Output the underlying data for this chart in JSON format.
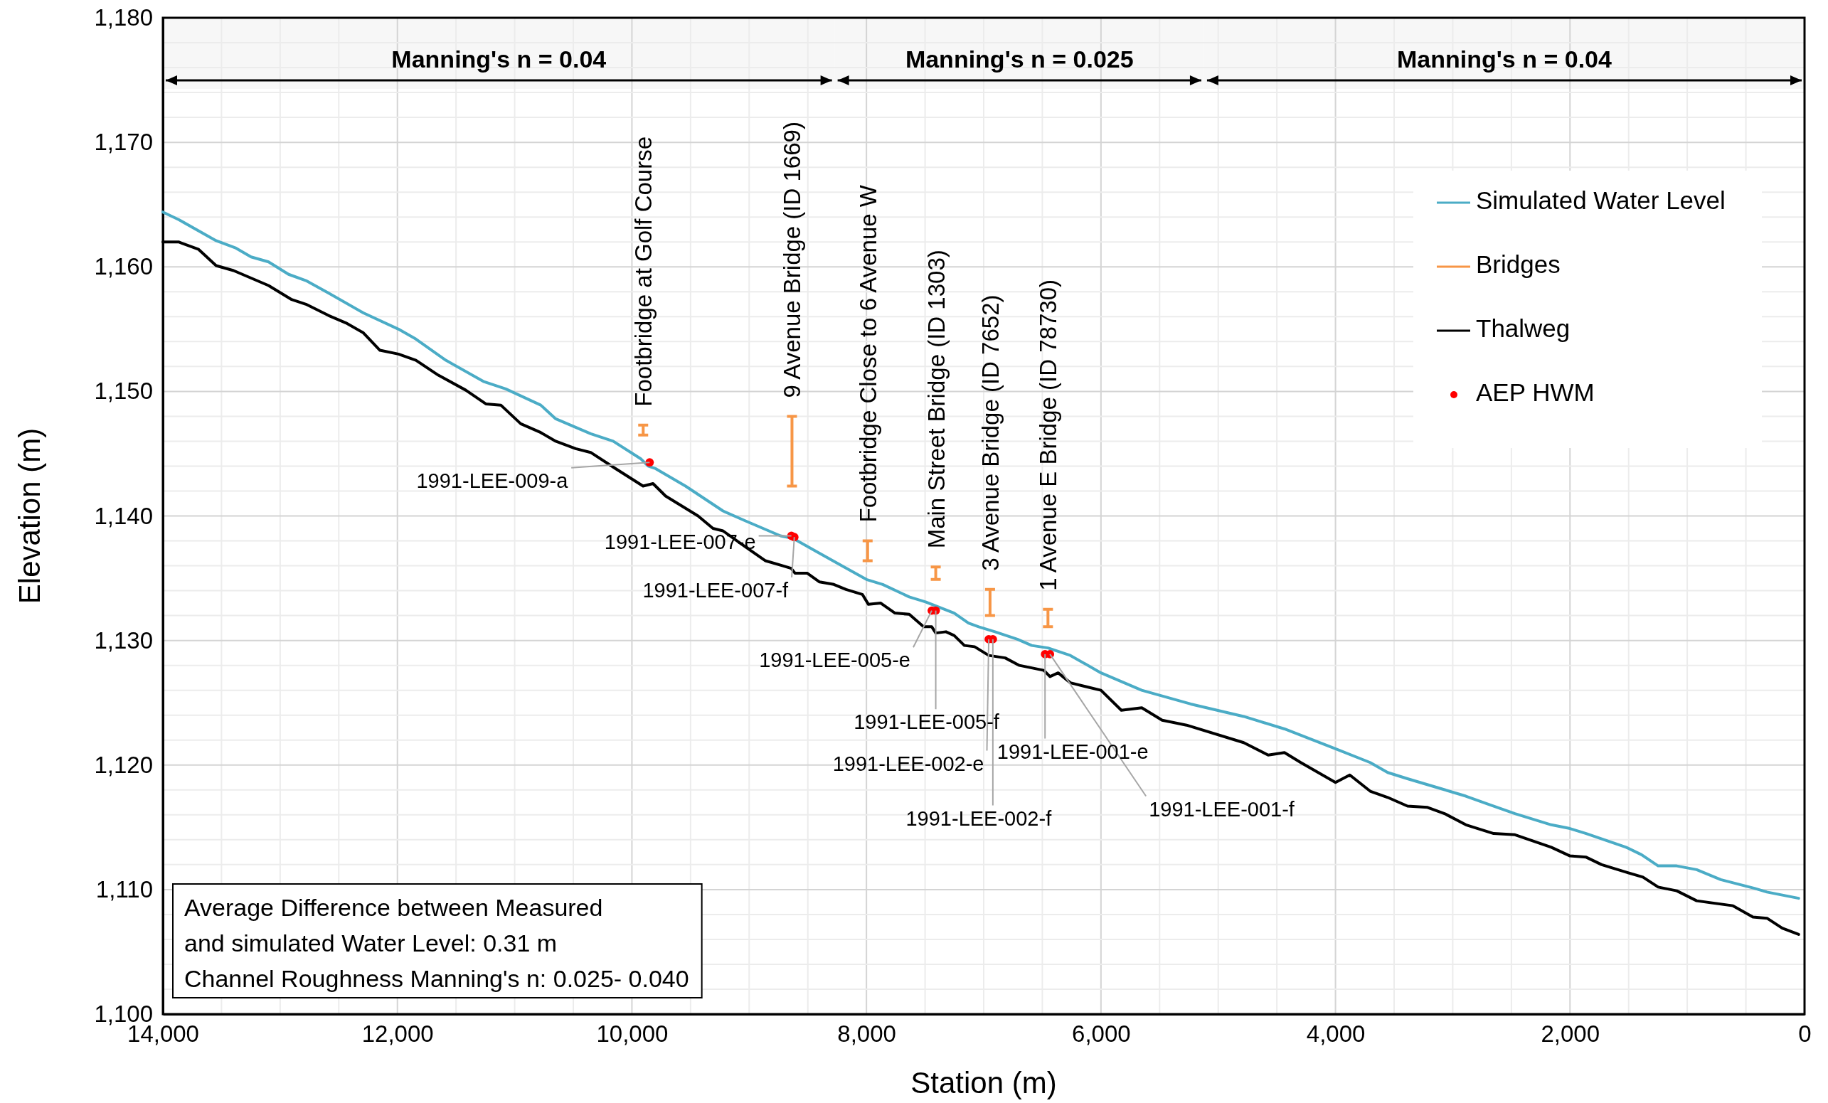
{
  "chart_data": {
    "type": "line",
    "xlabel": "Station (m)",
    "ylabel": "Elevation (m)",
    "xlim": [
      14000,
      0
    ],
    "xticks": [
      {
        "value": 14000,
        "label": "14,000"
      },
      {
        "value": 12000,
        "label": "12,000"
      },
      {
        "value": 10000,
        "label": "10,000"
      },
      {
        "value": 8000,
        "label": "8,000"
      },
      {
        "value": 6000,
        "label": "6,000"
      },
      {
        "value": 4000,
        "label": "4,000"
      },
      {
        "value": 2000,
        "label": "2,000"
      },
      0
    ],
    "ylim": [
      1100,
      1180
    ],
    "yticks": [
      {
        "value": 1100,
        "label": "1,100"
      },
      {
        "value": 1110,
        "label": "1,110"
      },
      {
        "value": 1120,
        "label": "1,120"
      },
      {
        "value": 1130,
        "label": "1,130"
      },
      {
        "value": 1140,
        "label": "1,140"
      },
      {
        "value": 1150,
        "label": "1,150"
      },
      {
        "value": 1160,
        "label": "1,160"
      },
      {
        "value": 1170,
        "label": "1,170"
      },
      {
        "value": 1180,
        "label": "1,180"
      }
    ],
    "grid": true,
    "legend": "top right",
    "series": [
      {
        "name": "Simulated Water Level",
        "color": "#4bacc6",
        "x": [
          14000,
          13866,
          13546,
          13376,
          13248,
          13099,
          12928,
          12780,
          12588,
          12290,
          11991,
          11842,
          11587,
          11267,
          11076,
          10778,
          10650,
          10352,
          10160,
          9926,
          9862,
          9798,
          9543,
          9223,
          9031,
          8733,
          8626,
          8400,
          8191,
          8000,
          7861,
          7635,
          7496,
          7252,
          7130,
          7043,
          6904,
          6713,
          6591,
          6452,
          6261,
          6000,
          5652,
          5235,
          4783,
          4435,
          4000,
          3704,
          3555,
          3386,
          3100,
          2888,
          2680,
          2469,
          2160,
          2000,
          1862,
          1522,
          1390,
          1248,
          1090,
          920,
          715,
          427,
          320,
          50
        ],
        "values": [
          1164.4,
          1163.8,
          1162.1,
          1161.5,
          1160.8,
          1160.4,
          1159.4,
          1158.9,
          1157.9,
          1156.3,
          1155.0,
          1154.2,
          1152.5,
          1150.8,
          1150.2,
          1148.9,
          1147.8,
          1146.6,
          1146.0,
          1144.6,
          1144.0,
          1143.8,
          1142.4,
          1140.4,
          1139.6,
          1138.4,
          1138.2,
          1137.0,
          1135.9,
          1134.9,
          1134.5,
          1133.5,
          1133.1,
          1132.2,
          1131.4,
          1131.1,
          1130.7,
          1130.1,
          1129.6,
          1129.4,
          1128.8,
          1127.4,
          1126.0,
          1124.9,
          1123.9,
          1122.9,
          1121.3,
          1120.2,
          1119.4,
          1118.9,
          1118.1,
          1117.5,
          1116.8,
          1116.1,
          1115.2,
          1114.9,
          1114.5,
          1113.4,
          1112.8,
          1111.9,
          1111.9,
          1111.6,
          1110.8,
          1110.1,
          1109.8,
          1109.3
        ]
      },
      {
        "name": "Bridges",
        "type": "bar",
        "color": "#f79646",
        "x": [
          9904,
          8635,
          7990,
          7409,
          6946,
          6452
        ],
        "base": [
          1146.5,
          1142.4,
          1136.4,
          1134.9,
          1132.0,
          1131.1
        ],
        "values": [
          0.8,
          5.6,
          1.6,
          1.0,
          2.1,
          1.4
        ]
      },
      {
        "name": "Thalweg",
        "color": "#000000",
        "x": [
          14000,
          13866,
          13695,
          13546,
          13397,
          13099,
          12907,
          12780,
          12588,
          12439,
          12290,
          12149,
          11991,
          11842,
          11651,
          11417,
          11246,
          11118,
          10948,
          10778,
          10650,
          10480,
          10352,
          10139,
          9905,
          9820,
          9713,
          9436,
          9309,
          9223,
          9074,
          8861,
          8713,
          8643,
          8609,
          8504,
          8400,
          8278,
          8174,
          8035,
          7983,
          7878,
          7757,
          7635,
          7513,
          7443,
          7409,
          7322,
          7252,
          7165,
          7078,
          6957,
          6817,
          6696,
          6487,
          6435,
          6365,
          6261,
          6000,
          5826,
          5652,
          5478,
          5270,
          4783,
          4574,
          4435,
          4296,
          4000,
          3878,
          3704,
          3555,
          3386,
          3215,
          3070,
          2888,
          2651,
          2469,
          2160,
          2000,
          1862,
          1730,
          1522,
          1378,
          1248,
          1090,
          920,
          610,
          440,
          320,
          190,
          50
        ],
        "values": [
          1162.0,
          1162.0,
          1161.4,
          1160.1,
          1159.7,
          1158.5,
          1157.4,
          1157.0,
          1156.1,
          1155.5,
          1154.7,
          1153.3,
          1153.0,
          1152.5,
          1151.3,
          1150.1,
          1149.0,
          1148.9,
          1147.4,
          1146.7,
          1146.0,
          1145.4,
          1145.1,
          1143.8,
          1142.4,
          1142.6,
          1141.6,
          1140.0,
          1139.0,
          1138.8,
          1137.8,
          1136.4,
          1136.0,
          1135.8,
          1135.4,
          1135.4,
          1134.7,
          1134.5,
          1134.1,
          1133.7,
          1132.9,
          1133.0,
          1132.2,
          1132.1,
          1131.1,
          1131.1,
          1130.6,
          1130.7,
          1130.4,
          1129.6,
          1129.5,
          1128.8,
          1128.6,
          1128.0,
          1127.6,
          1127.1,
          1127.4,
          1126.6,
          1126.0,
          1124.4,
          1124.6,
          1123.6,
          1123.2,
          1121.8,
          1120.8,
          1121.0,
          1120.2,
          1118.6,
          1119.2,
          1117.9,
          1117.4,
          1116.7,
          1116.6,
          1116.1,
          1115.2,
          1114.5,
          1114.4,
          1113.4,
          1112.7,
          1112.6,
          1112.0,
          1111.4,
          1111.0,
          1110.2,
          1109.9,
          1109.1,
          1108.7,
          1107.8,
          1107.7,
          1106.9,
          1106.4
        ]
      },
      {
        "name": "AEP HWM",
        "type": "scatter",
        "marker": "circle",
        "color": "#ff0000",
        "x": [
          9849,
          8640,
          8615,
          7443,
          7409,
          6957,
          6922,
          6477,
          6435
        ],
        "values": [
          1144.3,
          1138.4,
          1138.3,
          1132.4,
          1132.4,
          1130.1,
          1130.1,
          1128.9,
          1128.9
        ]
      }
    ],
    "bands": [
      {
        "axis": "x",
        "from": 14000,
        "to": 8270,
        "label": "Manning's n = 0.04"
      },
      {
        "axis": "x",
        "from": 8270,
        "to": 5120,
        "label": "Manning's n = 0.025"
      },
      {
        "axis": "x",
        "from": 5120,
        "to": 0,
        "label": "Manning's n = 0.04"
      }
    ],
    "annotations": [
      {
        "text": "Footbridge at Golf Course",
        "x": 9904,
        "y": 1147.3
      },
      {
        "text": "9 Avenue Bridge (ID 1669)",
        "x": 8635,
        "y": 1148.0
      },
      {
        "text": "Footbridge Close to 6 Avenue W",
        "x": 7990,
        "y": 1138.0
      },
      {
        "text": "Main Street Bridge (ID 1303)",
        "x": 7409,
        "y": 1135.9
      },
      {
        "text": "3 Avenue Bridge (ID 7652)",
        "x": 6946,
        "y": 1134.1
      },
      {
        "text": "1 Avenue E Bridge (ID 78730)",
        "x": 6452,
        "y": 1132.5
      },
      {
        "text": "1991-LEE-009-a",
        "x": 9849,
        "y": 1144.3
      },
      {
        "text": "1991-LEE-007-e",
        "x": 8640,
        "y": 1138.4
      },
      {
        "text": "1991-LEE-007-f",
        "x": 8615,
        "y": 1138.3
      },
      {
        "text": "1991-LEE-005-e",
        "x": 7443,
        "y": 1132.4
      },
      {
        "text": "1991-LEE-005-f",
        "x": 7409,
        "y": 1132.4
      },
      {
        "text": "1991-LEE-002-e",
        "x": 6957,
        "y": 1130.1
      },
      {
        "text": "1991-LEE-002-f",
        "x": 6922,
        "y": 1130.1
      },
      {
        "text": "1991-LEE-001-e",
        "x": 6477,
        "y": 1128.9
      },
      {
        "text": "1991-LEE-001-f",
        "x": 6435,
        "y": 1128.9
      },
      "Average Difference between Measured\nand simulated Water Level:  0.31 m\nChannel Roughness Manning's n: 0.025- 0.040"
    ]
  }
}
